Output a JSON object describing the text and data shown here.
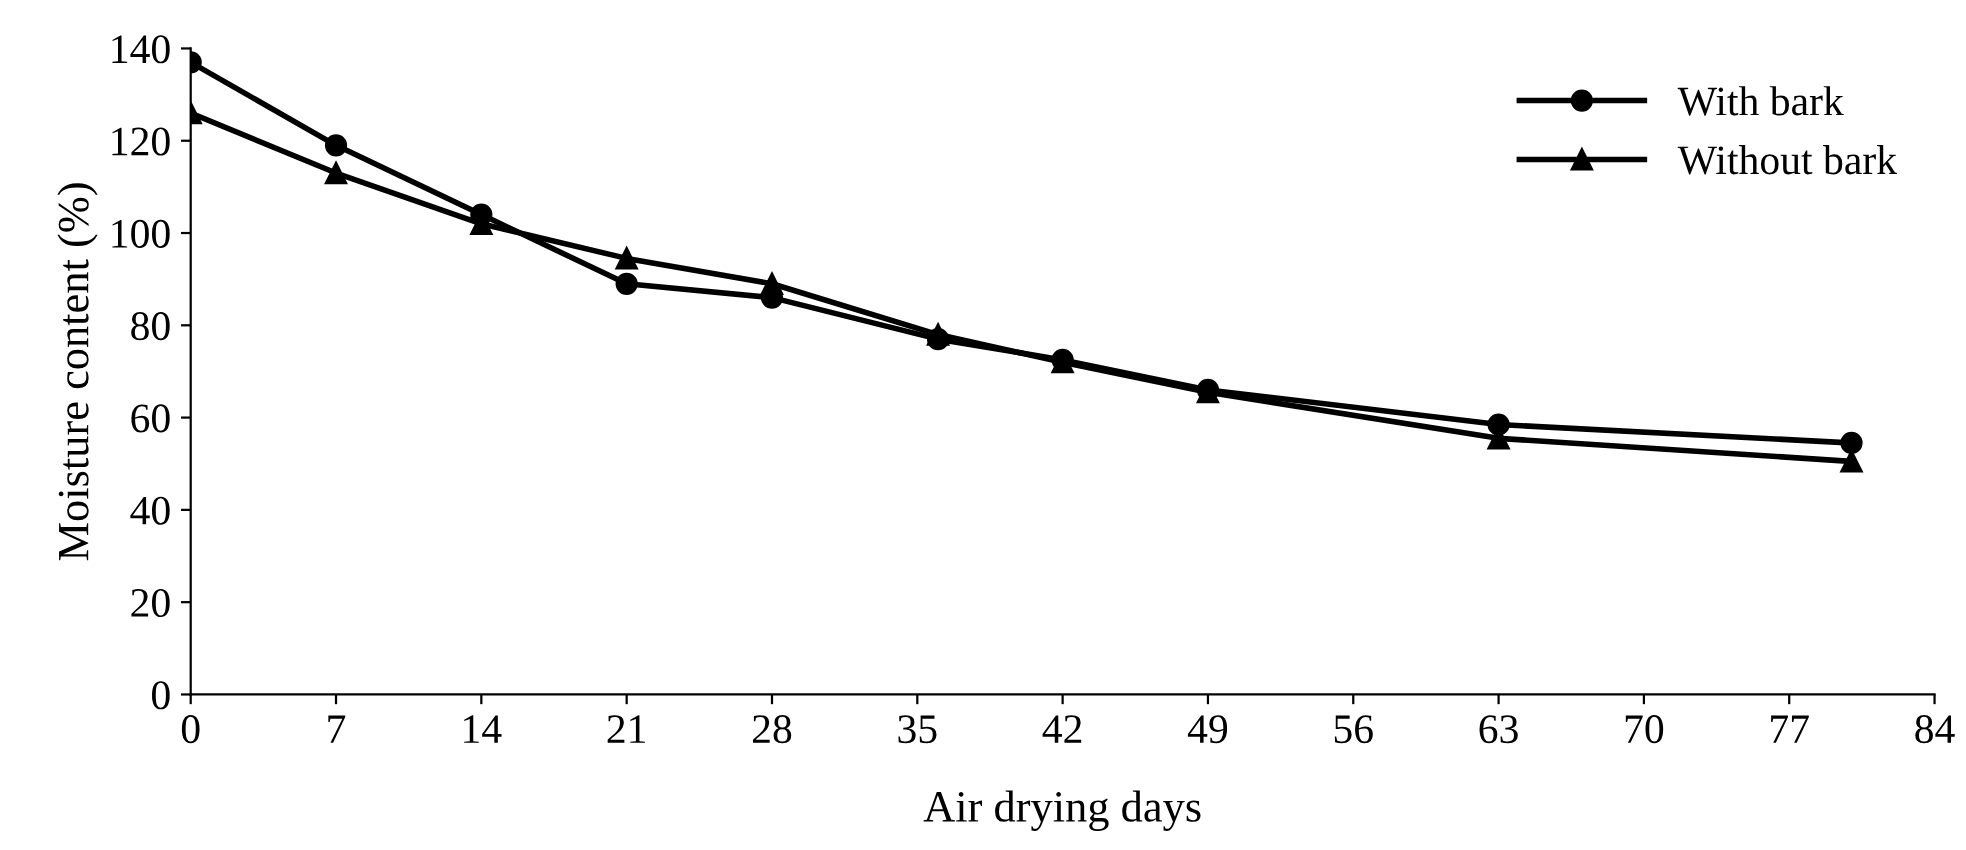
{
  "chart_data": {
    "type": "line",
    "xlabel": "Air drying days",
    "ylabel": "Moisture content (%)",
    "xlim": [
      0,
      84
    ],
    "xticks": [
      0,
      7,
      14,
      21,
      28,
      35,
      42,
      49,
      56,
      63,
      70,
      77,
      84
    ],
    "ylim": [
      0,
      140
    ],
    "yticks": [
      0,
      20,
      40,
      60,
      80,
      100,
      120,
      140
    ],
    "x": [
      0,
      7,
      14,
      21,
      28,
      36,
      42,
      49,
      63,
      80
    ],
    "series": [
      {
        "name": "With bark",
        "color": "#000000",
        "marker": "circle",
        "values": [
          137,
          119,
          104,
          89,
          86,
          77,
          72.5,
          66,
          58.5,
          54.5
        ]
      },
      {
        "name": "Without bark",
        "color": "#000000",
        "marker": "triangle",
        "values": [
          126,
          113,
          102,
          94.5,
          89,
          78,
          72,
          65.5,
          55.5,
          50.5
        ]
      }
    ],
    "grid": false,
    "legend": "top right",
    "line_style": "solid"
  }
}
